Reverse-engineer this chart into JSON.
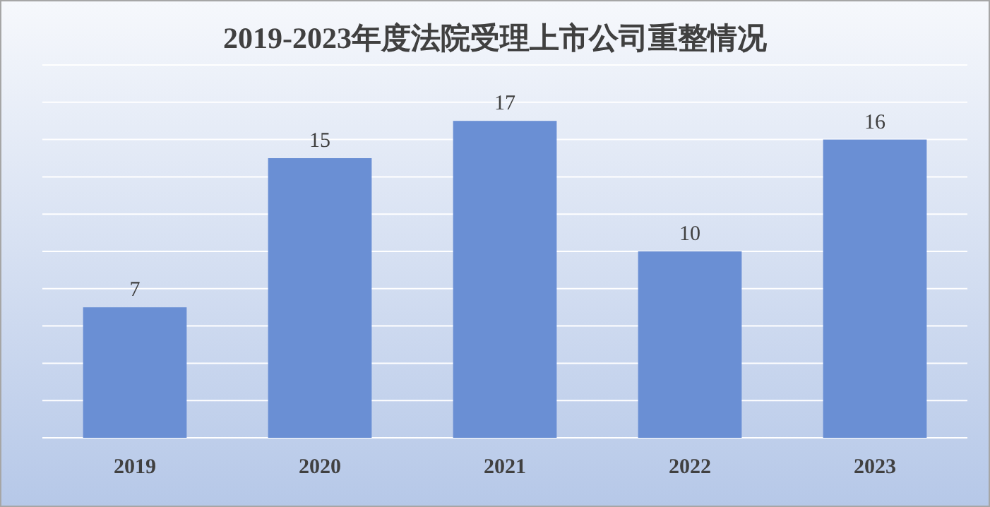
{
  "chart_data": {
    "type": "bar",
    "title": "2019-2023年度法院受理上市公司重整情况",
    "categories": [
      "2019",
      "2020",
      "2021",
      "2022",
      "2023"
    ],
    "values": [
      7,
      15,
      17,
      10,
      16
    ],
    "color": "#6a8fd4",
    "ylim": [
      0,
      20
    ],
    "yticks": [
      {
        "value": 0,
        "label": null
      },
      {
        "value": 2,
        "label": null
      },
      {
        "value": 4,
        "label": null
      },
      {
        "value": 6,
        "label": null
      },
      {
        "value": 8,
        "label": null
      },
      {
        "value": 10,
        "label": null
      },
      {
        "value": 12,
        "label": null
      },
      {
        "value": 14,
        "label": null
      },
      {
        "value": 16,
        "label": null
      },
      {
        "value": 18,
        "label": null
      },
      {
        "value": 20,
        "label": null
      }
    ],
    "grid": "y",
    "data_labels": true,
    "tick_labels": "x"
  }
}
